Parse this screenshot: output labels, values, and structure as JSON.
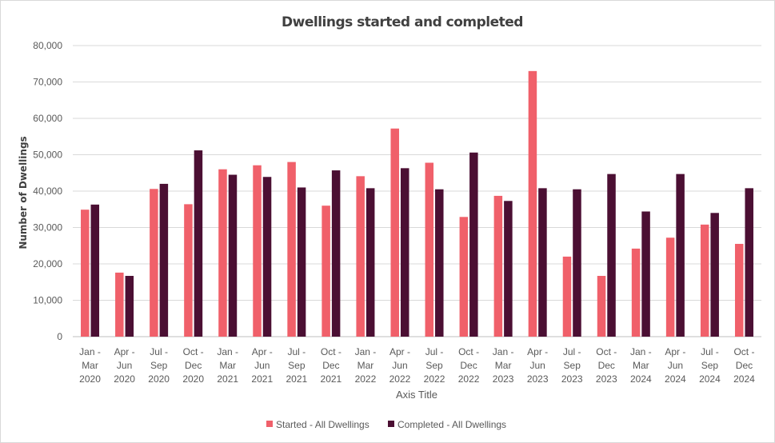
{
  "chart_data": {
    "type": "bar",
    "title": "Dwellings started and completed",
    "xlabel": "Axis Title",
    "ylabel": "Number of Dwellings",
    "ylim": [
      0,
      80000
    ],
    "yticks": [
      "0",
      "10,000",
      "20,000",
      "30,000",
      "40,000",
      "50,000",
      "60,000",
      "70,000",
      "80,000"
    ],
    "ytick_values": [
      0,
      10000,
      20000,
      30000,
      40000,
      50000,
      60000,
      70000,
      80000
    ],
    "grid": true,
    "legend_position": "bottom",
    "categories": [
      [
        "Jan -",
        "Mar",
        "2020"
      ],
      [
        "Apr -",
        "Jun",
        "2020"
      ],
      [
        "Jul -",
        "Sep",
        "2020"
      ],
      [
        "Oct -",
        "Dec",
        "2020"
      ],
      [
        "Jan -",
        "Mar",
        "2021"
      ],
      [
        "Apr -",
        "Jun",
        "2021"
      ],
      [
        "Jul -",
        "Sep",
        "2021"
      ],
      [
        "Oct -",
        "Dec",
        "2021"
      ],
      [
        "Jan -",
        "Mar",
        "2022"
      ],
      [
        "Apr -",
        "Jun",
        "2022"
      ],
      [
        "Jul -",
        "Sep",
        "2022"
      ],
      [
        "Oct -",
        "Dec",
        "2022"
      ],
      [
        "Jan -",
        "Mar",
        "2023"
      ],
      [
        "Apr -",
        "Jun",
        "2023"
      ],
      [
        "Jul -",
        "Sep",
        "2023"
      ],
      [
        "Oct -",
        "Dec",
        "2023"
      ],
      [
        "Jan -",
        "Mar",
        "2024"
      ],
      [
        "Apr -",
        "Jun",
        "2024"
      ],
      [
        "Jul -",
        "Sep",
        "2024"
      ],
      [
        "Oct -",
        "Dec",
        "2024"
      ]
    ],
    "series": [
      {
        "name": "Started - All Dwellings",
        "color": "#f0606a",
        "values": [
          34900,
          17600,
          40600,
          36400,
          46000,
          47100,
          48000,
          36000,
          44100,
          57200,
          47800,
          32900,
          38700,
          73000,
          22000,
          16700,
          24200,
          27200,
          30800,
          25500
        ]
      },
      {
        "name": "Completed - All Dwellings",
        "color": "#4b0f33",
        "values": [
          36300,
          16700,
          42000,
          51200,
          44500,
          43900,
          41000,
          45700,
          40800,
          46300,
          40500,
          50600,
          37300,
          40800,
          40500,
          44700,
          34400,
          44700,
          34000,
          40800
        ]
      }
    ]
  }
}
